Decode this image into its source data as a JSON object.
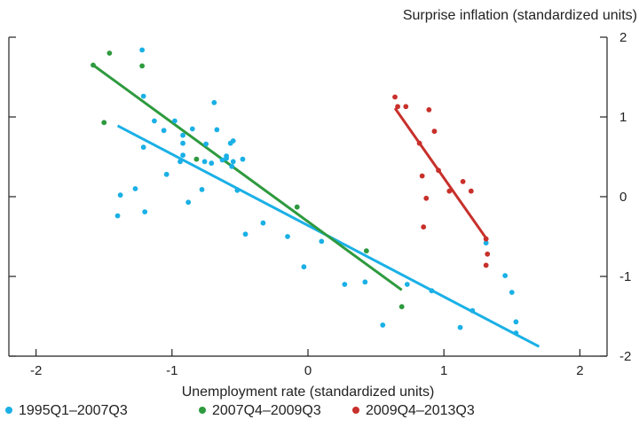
{
  "chart_data": {
    "type": "scatter",
    "title": "",
    "xlabel": "Unemployment rate (standardized units)",
    "ylabel": "Surprise inflation (standardized units)",
    "xlim": [
      -2.2,
      2.2
    ],
    "ylim": [
      -2,
      2
    ],
    "x_ticks": [
      -2,
      -1,
      0,
      1,
      2
    ],
    "y_ticks": [
      -2,
      -1,
      0,
      1,
      2
    ],
    "y_axis_side": "right",
    "grid": false,
    "legend_position": "bottom",
    "series": [
      {
        "name": "1995Q1–2007Q3",
        "color": "#1ab0e6",
        "points": [
          [
            -1.22,
            1.84
          ],
          [
            -1.21,
            1.26
          ],
          [
            -1.13,
            0.95
          ],
          [
            -1.06,
            0.83
          ],
          [
            -1.21,
            0.62
          ],
          [
            -0.98,
            0.95
          ],
          [
            -0.92,
            0.67
          ],
          [
            -0.92,
            0.52
          ],
          [
            -0.94,
            0.44
          ],
          [
            -0.92,
            0.77
          ],
          [
            -0.85,
            0.85
          ],
          [
            -0.75,
            0.66
          ],
          [
            -0.71,
            0.42
          ],
          [
            -0.76,
            0.44
          ],
          [
            -0.69,
            1.18
          ],
          [
            -0.67,
            0.84
          ],
          [
            -0.63,
            0.46
          ],
          [
            -0.6,
            0.51
          ],
          [
            -0.57,
            0.67
          ],
          [
            -0.55,
            0.7
          ],
          [
            -0.55,
            0.44
          ],
          [
            -0.6,
            0.48
          ],
          [
            -0.56,
            0.38
          ],
          [
            -0.48,
            0.47
          ],
          [
            -1.04,
            0.28
          ],
          [
            -0.78,
            0.09
          ],
          [
            -0.88,
            -0.07
          ],
          [
            -1.38,
            0.02
          ],
          [
            -1.4,
            -0.24
          ],
          [
            -1.2,
            -0.19
          ],
          [
            -1.27,
            0.1
          ],
          [
            -0.52,
            0.08
          ],
          [
            -0.46,
            -0.47
          ],
          [
            -0.33,
            -0.33
          ],
          [
            -0.15,
            -0.5
          ],
          [
            -0.03,
            -0.88
          ],
          [
            0.1,
            -0.56
          ],
          [
            0.27,
            -1.1
          ],
          [
            0.42,
            -1.07
          ],
          [
            0.55,
            -1.61
          ],
          [
            0.73,
            -1.1
          ],
          [
            0.91,
            -1.18
          ],
          [
            1.12,
            -1.64
          ],
          [
            1.21,
            -1.43
          ],
          [
            1.31,
            -0.58
          ],
          [
            1.45,
            -0.99
          ],
          [
            1.5,
            -1.2
          ],
          [
            1.53,
            -1.57
          ],
          [
            1.53,
            -1.71
          ]
        ],
        "fit": [
          [
            -1.4,
            0.89
          ],
          [
            1.7,
            -1.88
          ]
        ]
      },
      {
        "name": "2007Q4–2009Q3",
        "color": "#2e9a3e",
        "points": [
          [
            -1.58,
            1.65
          ],
          [
            -1.46,
            1.8
          ],
          [
            -1.5,
            0.93
          ],
          [
            -1.22,
            1.64
          ],
          [
            -0.82,
            0.47
          ],
          [
            -0.08,
            -0.13
          ],
          [
            0.43,
            -0.68
          ],
          [
            0.69,
            -1.38
          ]
        ],
        "fit": [
          [
            -1.58,
            1.65
          ],
          [
            0.69,
            -1.17
          ]
        ]
      },
      {
        "name": "2009Q4–2013Q3",
        "color": "#c8302b",
        "points": [
          [
            0.64,
            1.25
          ],
          [
            0.66,
            1.13
          ],
          [
            0.72,
            1.13
          ],
          [
            0.89,
            1.09
          ],
          [
            0.93,
            0.82
          ],
          [
            0.82,
            0.67
          ],
          [
            0.96,
            0.33
          ],
          [
            0.84,
            0.26
          ],
          [
            1.04,
            0.07
          ],
          [
            1.14,
            0.19
          ],
          [
            1.2,
            0.07
          ],
          [
            0.87,
            -0.02
          ],
          [
            0.85,
            -0.38
          ],
          [
            1.31,
            -0.53
          ],
          [
            1.32,
            -0.72
          ],
          [
            1.31,
            -0.86
          ]
        ],
        "fit": [
          [
            0.64,
            1.11
          ],
          [
            1.31,
            -0.52
          ]
        ]
      }
    ]
  }
}
